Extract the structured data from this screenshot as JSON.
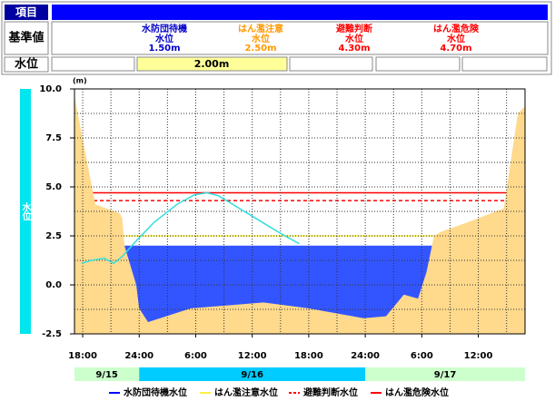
{
  "header": {
    "item_label": "項目",
    "standard_label": "基準値",
    "levels": [
      {
        "name": "水防団待機",
        "unit": "水位",
        "value": "1.50m",
        "color": "#0000cc"
      },
      {
        "name": "はん濫注意",
        "unit": "水位",
        "value": "2.50m",
        "color": "#ff9900"
      },
      {
        "name": "避難判断",
        "unit": "水位",
        "value": "4.30m",
        "color": "#ff0000"
      },
      {
        "name": "はん濫危険",
        "unit": "水位",
        "value": "4.70m",
        "color": "#ff0000"
      }
    ],
    "water_level_label": "水位",
    "current_level": "2.00m"
  },
  "chart_data": {
    "type": "line",
    "y_label": "水位",
    "unit": "(m)",
    "xlim": [
      17.13,
      64.96
    ],
    "ylim": [
      -2.5,
      10
    ],
    "xticks": [
      {
        "value": 18,
        "label": "18:00"
      },
      {
        "value": 24,
        "label": "24:00"
      },
      {
        "value": 30,
        "label": "6:00"
      },
      {
        "value": 36,
        "label": "12:00"
      },
      {
        "value": 42,
        "label": "18:00"
      },
      {
        "value": 48,
        "label": "24:00"
      },
      {
        "value": 54,
        "label": "6:00"
      },
      {
        "value": 60,
        "label": "12:00"
      }
    ],
    "yticks": [
      {
        "value": 10,
        "label": "10.0"
      },
      7.5,
      {
        "value": 5,
        "label": "5.0"
      },
      2.5,
      {
        "value": 0,
        "label": "0.0"
      },
      -2.5
    ],
    "xgrid": [
      18,
      21,
      24,
      27,
      30,
      33,
      36,
      39,
      42,
      45,
      48,
      51,
      54,
      57,
      60,
      63
    ],
    "ygrid": [
      -1.25,
      0,
      1.25,
      2.5,
      3.75,
      5,
      6.25,
      7.5,
      8.75
    ],
    "grid": true,
    "thresholds": [
      {
        "name": "水防団待機水位",
        "value": 1.5,
        "color": "#0000ff",
        "dash": false
      },
      {
        "name": "はん濫注意水位",
        "value": 2.5,
        "color": "#ffee44",
        "dash": false
      },
      {
        "name": "避難判断水位",
        "value": 4.3,
        "color": "#ff0000",
        "dash": true
      },
      {
        "name": "はん濫危険水位",
        "value": 4.7,
        "color": "#ff0000",
        "dash": false
      }
    ],
    "series": [
      {
        "kind": "area",
        "color": "#3355ff",
        "x": [
          22.4,
          55.3
        ],
        "values": [
          2.0,
          2.0
        ]
      },
      {
        "kind": "area",
        "color": "#ffd98c",
        "x": [
          17.13,
          19.35,
          21.95,
          22.2,
          22.43,
          23.69,
          24.0,
          24.94,
          29.47,
          37.2,
          42.0,
          47.8,
          50.2,
          52.1,
          53.6,
          54.5,
          55.3,
          56.0,
          58.9,
          62.7,
          64.2,
          64.96
        ],
        "values": [
          9.6,
          4.1,
          3.65,
          3.4,
          2.0,
          0.0,
          -1.2,
          -1.9,
          -1.2,
          -0.9,
          -1.2,
          -1.7,
          -1.6,
          -0.5,
          -0.7,
          0.65,
          2.5,
          2.7,
          3.2,
          3.9,
          8.75,
          9.1
        ]
      },
      {
        "kind": "line",
        "color": "#33dddd",
        "x": [
          17.9,
          18.9,
          20.3,
          21.3,
          22.2,
          23.7,
          25.6,
          28.0,
          29.9,
          31.2,
          32.4,
          34.3,
          36.7,
          39.1,
          41.0
        ],
        "values": [
          1.1,
          1.25,
          1.35,
          1.1,
          1.45,
          2.25,
          3.2,
          4.1,
          4.6,
          4.7,
          4.55,
          4.0,
          3.3,
          2.6,
          2.1
        ]
      }
    ],
    "date_bands": [
      {
        "label": "9/15",
        "start": 17.13,
        "end": 24,
        "color": "#ccffcc"
      },
      {
        "label": "9/16",
        "start": 24,
        "end": 48,
        "color": "#00ccff"
      },
      {
        "label": "9/17",
        "start": 48,
        "end": 64.96,
        "color": "#ccffcc"
      }
    ]
  }
}
